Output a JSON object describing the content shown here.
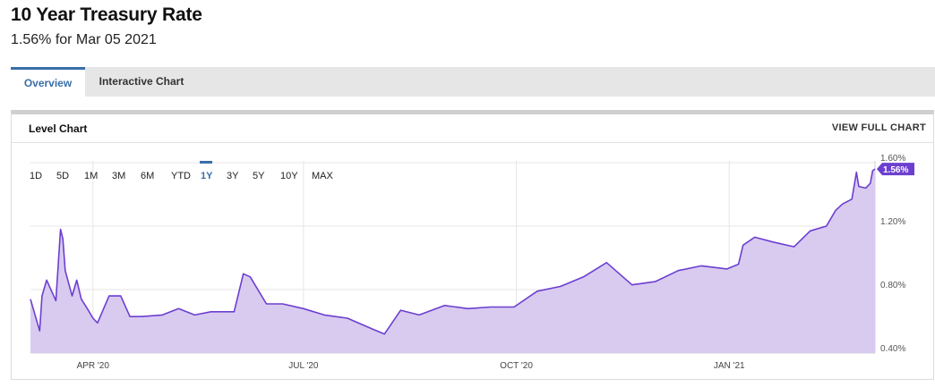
{
  "header": {
    "title": "10 Year Treasury Rate",
    "subtitle": "1.56% for Mar 05 2021"
  },
  "tabs": [
    {
      "label": "Overview",
      "active": true
    },
    {
      "label": "Interactive Chart",
      "active": false
    }
  ],
  "card": {
    "title": "Level Chart",
    "view_full_label": "VIEW FULL CHART"
  },
  "ranges": {
    "items": [
      "1D",
      "5D",
      "1M",
      "3M",
      "6M",
      "YTD",
      "1Y",
      "3Y",
      "5Y",
      "10Y",
      "MAX"
    ],
    "selected": "1Y"
  },
  "colors": {
    "line": "#6c3fcf",
    "fill": "#d9cbf0",
    "accent_tab": "#3a6ea8",
    "selected_range": "#3a6ea8"
  },
  "chart_data": {
    "type": "area",
    "title": "",
    "xlabel": "",
    "ylabel": "",
    "ylim": [
      0.4,
      1.6
    ],
    "yticks": [
      0.4,
      0.8,
      1.2,
      1.6
    ],
    "ytick_labels": [
      "0.40%",
      "0.80%",
      "1.20%",
      "1.60%"
    ],
    "xticks": [
      {
        "date": "2020-04-01",
        "label": "APR '20"
      },
      {
        "date": "2020-07-01",
        "label": "JUL '20"
      },
      {
        "date": "2020-10-01",
        "label": "OCT '20"
      },
      {
        "date": "2021-01-01",
        "label": "JAN '21"
      }
    ],
    "xlim": [
      "2020-03-05",
      "2021-03-05"
    ],
    "grid": true,
    "current_value_label": "1.56%",
    "series": [
      {
        "x": [
          "2020-03-05",
          "2020-03-09",
          "2020-03-10",
          "2020-03-12",
          "2020-03-16",
          "2020-03-18",
          "2020-03-19",
          "2020-03-20",
          "2020-03-23",
          "2020-03-25",
          "2020-03-27",
          "2020-03-30",
          "2020-04-01",
          "2020-04-03",
          "2020-04-08",
          "2020-04-13",
          "2020-04-17",
          "2020-04-22",
          "2020-05-01",
          "2020-05-08",
          "2020-05-15",
          "2020-05-22",
          "2020-06-01",
          "2020-06-05",
          "2020-06-08",
          "2020-06-15",
          "2020-06-22",
          "2020-07-01",
          "2020-07-10",
          "2020-07-20",
          "2020-07-31",
          "2020-08-05",
          "2020-08-12",
          "2020-08-20",
          "2020-08-31",
          "2020-09-10",
          "2020-09-20",
          "2020-09-30",
          "2020-10-10",
          "2020-10-20",
          "2020-10-30",
          "2020-11-09",
          "2020-11-20",
          "2020-11-30",
          "2020-12-10",
          "2020-12-20",
          "2020-12-31",
          "2021-01-05",
          "2021-01-07",
          "2021-01-12",
          "2021-01-20",
          "2021-01-29",
          "2021-02-05",
          "2021-02-12",
          "2021-02-16",
          "2021-02-19",
          "2021-02-23",
          "2021-02-25",
          "2021-02-26",
          "2021-03-01",
          "2021-03-03",
          "2021-03-04",
          "2021-03-05"
        ],
        "values": [
          0.74,
          0.54,
          0.76,
          0.86,
          0.73,
          1.18,
          1.12,
          0.92,
          0.76,
          0.86,
          0.74,
          0.67,
          0.62,
          0.59,
          0.76,
          0.76,
          0.63,
          0.63,
          0.64,
          0.68,
          0.64,
          0.66,
          0.66,
          0.9,
          0.88,
          0.71,
          0.71,
          0.68,
          0.64,
          0.62,
          0.55,
          0.52,
          0.67,
          0.64,
          0.7,
          0.68,
          0.69,
          0.69,
          0.79,
          0.82,
          0.88,
          0.97,
          0.83,
          0.85,
          0.92,
          0.95,
          0.93,
          0.96,
          1.08,
          1.13,
          1.1,
          1.07,
          1.17,
          1.2,
          1.3,
          1.34,
          1.37,
          1.54,
          1.45,
          1.44,
          1.47,
          1.55,
          1.56
        ]
      }
    ]
  }
}
